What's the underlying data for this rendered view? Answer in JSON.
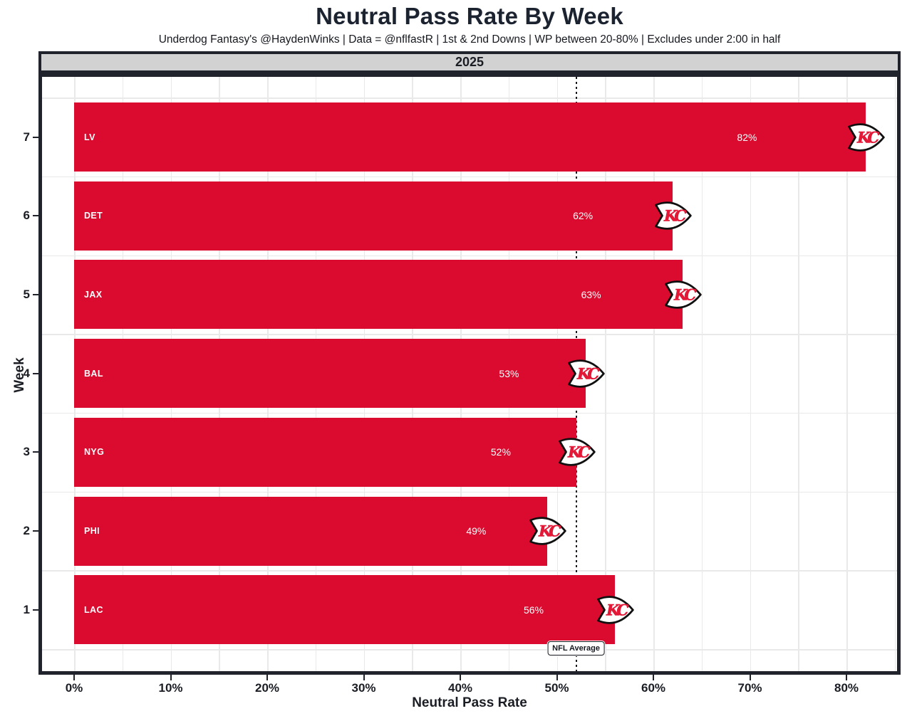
{
  "title": "Neutral Pass Rate By Week",
  "subtitle": "Underdog Fantasy's @HaydenWinks | Data = @nflfastR | 1st & 2nd Downs | WP between 20-80% | Excludes under 2:00 in half",
  "facet_label": "2025",
  "chart_data": {
    "type": "bar",
    "orientation": "horizontal",
    "title": "Neutral Pass Rate By Week",
    "xlabel": "Neutral Pass Rate",
    "ylabel": "Week",
    "xlim": [
      0,
      85
    ],
    "grid": "on",
    "x_ticks": [
      "0%",
      "10%",
      "20%",
      "30%",
      "40%",
      "50%",
      "60%",
      "70%",
      "80%"
    ],
    "x_tick_values": [
      0,
      10,
      20,
      30,
      40,
      50,
      60,
      70,
      80
    ],
    "categories": [
      7,
      6,
      5,
      4,
      3,
      2,
      1
    ],
    "bars": [
      {
        "week": 7,
        "opponent": "LV",
        "value": 82,
        "label": "82%"
      },
      {
        "week": 6,
        "opponent": "DET",
        "value": 62,
        "label": "62%"
      },
      {
        "week": 5,
        "opponent": "JAX",
        "value": 63,
        "label": "63%"
      },
      {
        "week": 4,
        "opponent": "BAL",
        "value": 53,
        "label": "53%"
      },
      {
        "week": 3,
        "opponent": "NYG",
        "value": 52,
        "label": "52%"
      },
      {
        "week": 2,
        "opponent": "PHI",
        "value": 49,
        "label": "49%"
      },
      {
        "week": 1,
        "opponent": "LAC",
        "value": 56,
        "label": "56%"
      }
    ],
    "reference_line": {
      "value": 52,
      "label": "NFL Average",
      "style": "dotted"
    },
    "bar_logo": "kansas-city-chiefs-arrowhead",
    "logo_text": "KC"
  },
  "colors": {
    "bar": "#DA0B2E",
    "logo_red": "#E31837",
    "panel_border": "#20232B",
    "strip_bg": "#D2D2D2",
    "grid": "#E9E9E9",
    "text": "#1A1D24",
    "bar_text": "#FFFFFF"
  }
}
